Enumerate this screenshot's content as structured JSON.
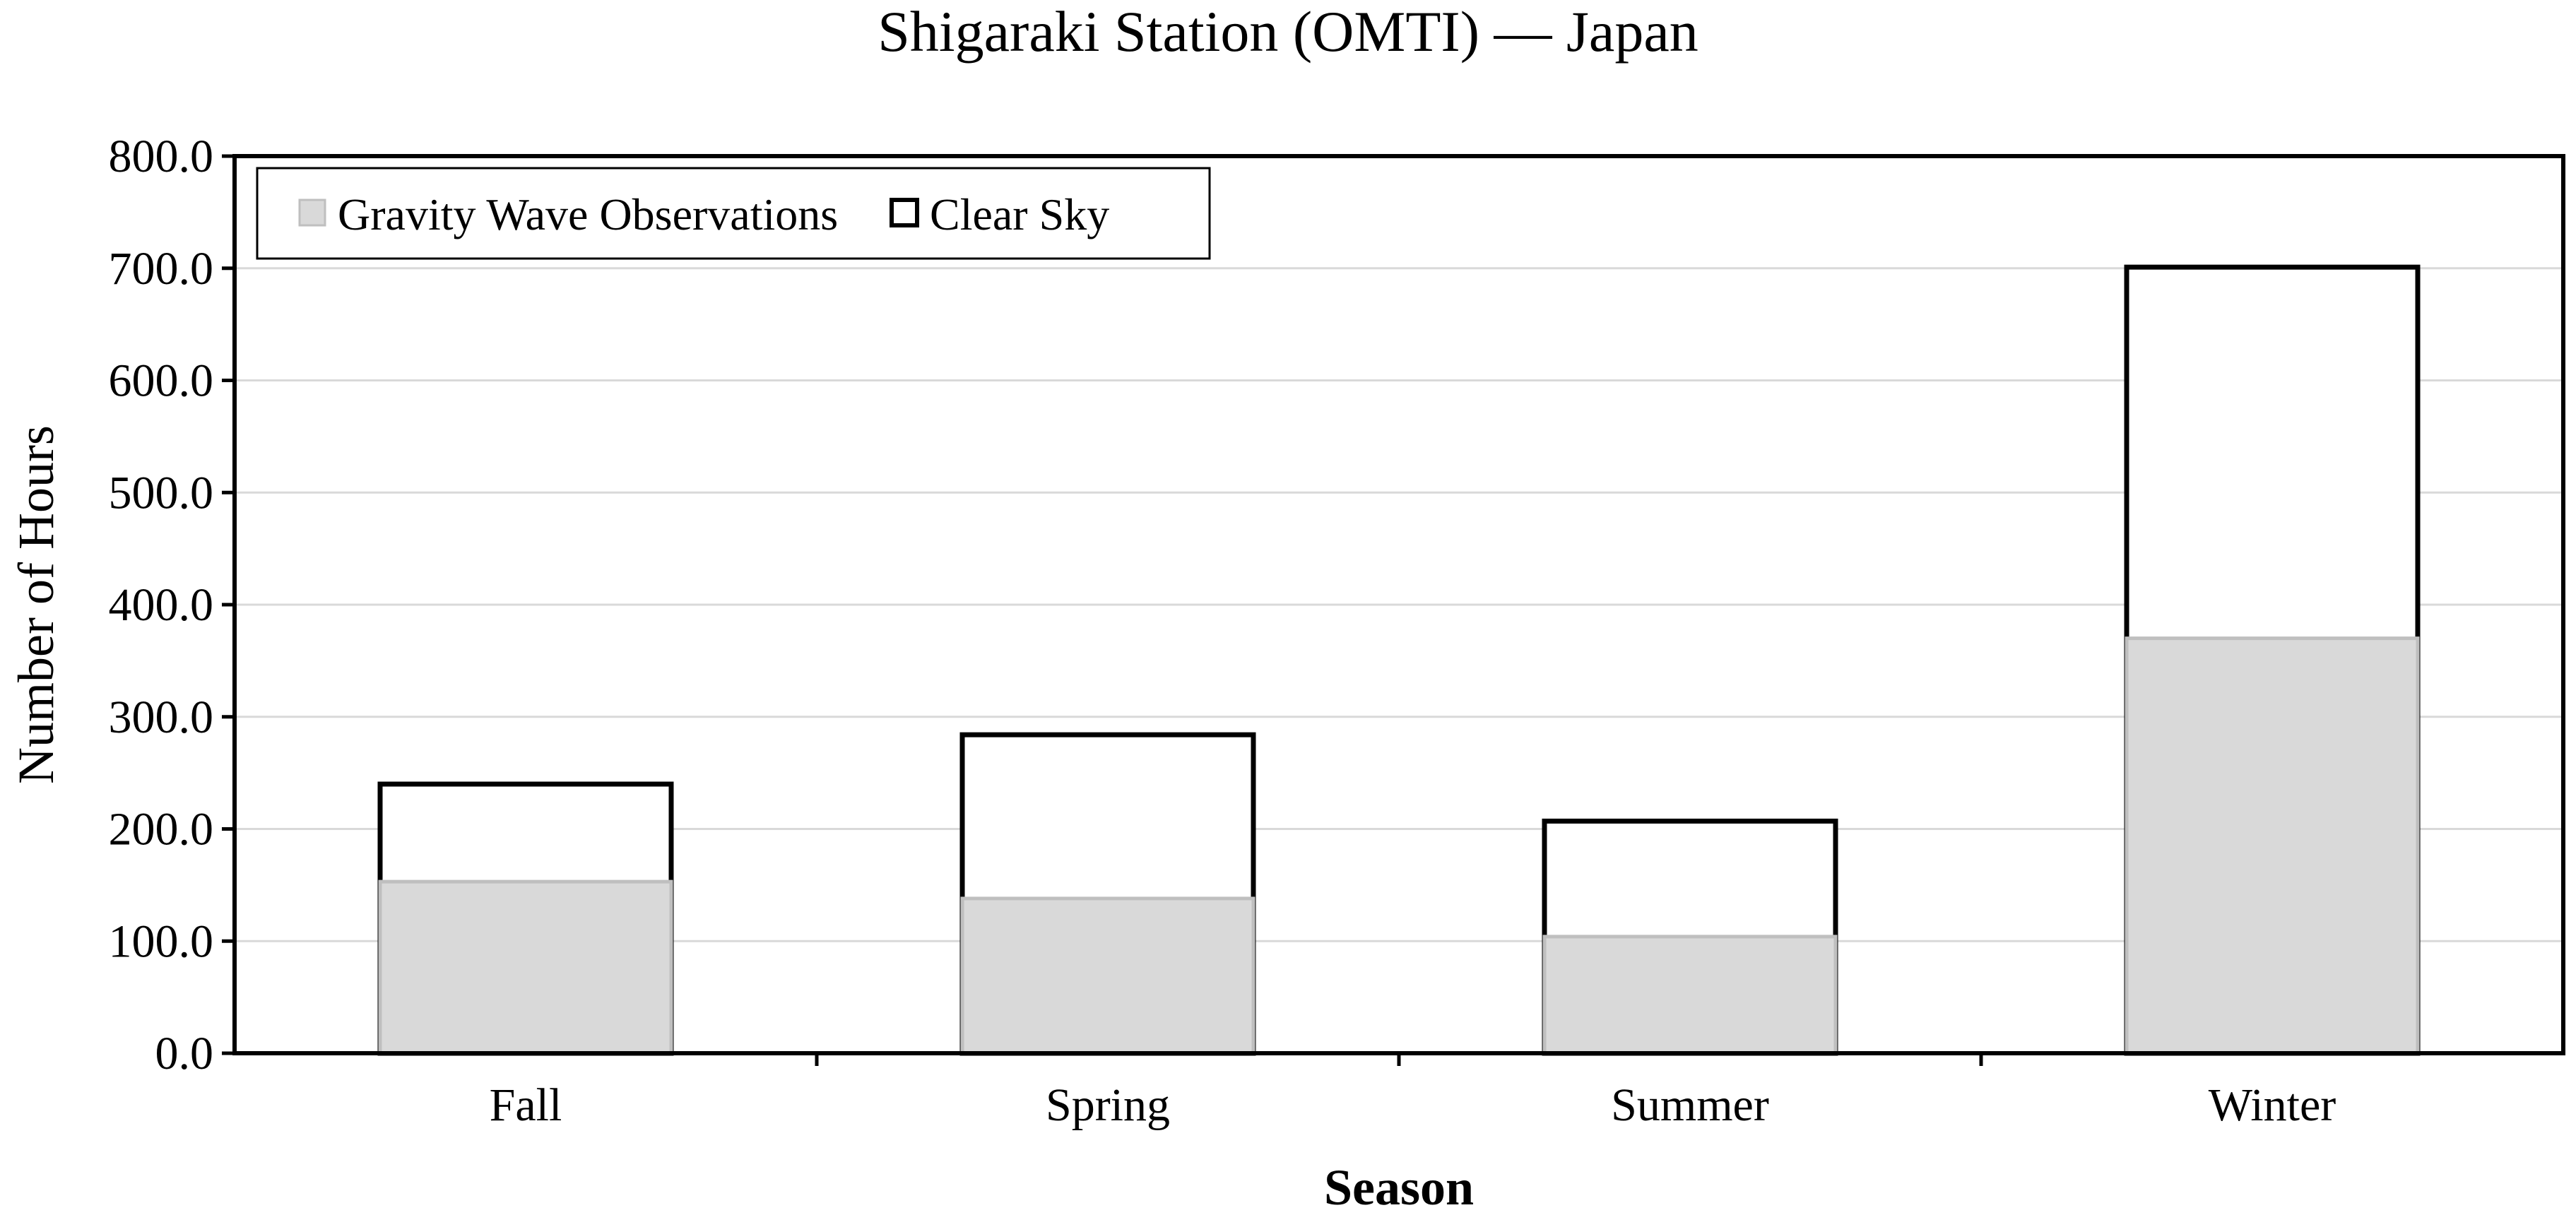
{
  "chart_data": {
    "type": "bar",
    "title": "Shigaraki Station (OMTI) — Japan",
    "xlabel": "Season",
    "ylabel": "Number of Hours",
    "categories": [
      "Fall",
      "Spring",
      "Summer",
      "Winter"
    ],
    "series": [
      {
        "name": "Gravity Wave Observations",
        "values": [
          153,
          138,
          104,
          370
        ],
        "color": "#d9d9d9",
        "edge": "#bfbfbf"
      },
      {
        "name": "Clear Sky",
        "values": [
          240,
          284,
          207,
          701
        ],
        "color": "#ffffff",
        "edge": "#000000"
      }
    ],
    "overlap": true,
    "ylim": [
      0,
      800
    ],
    "yticks": [
      0,
      100,
      200,
      300,
      400,
      500,
      600,
      700,
      800
    ],
    "ytick_labels": [
      "0.0",
      "100.0",
      "200.0",
      "300.0",
      "400.0",
      "500.0",
      "600.0",
      "700.0",
      "800.0"
    ],
    "grid": true,
    "legend": "top-left"
  }
}
